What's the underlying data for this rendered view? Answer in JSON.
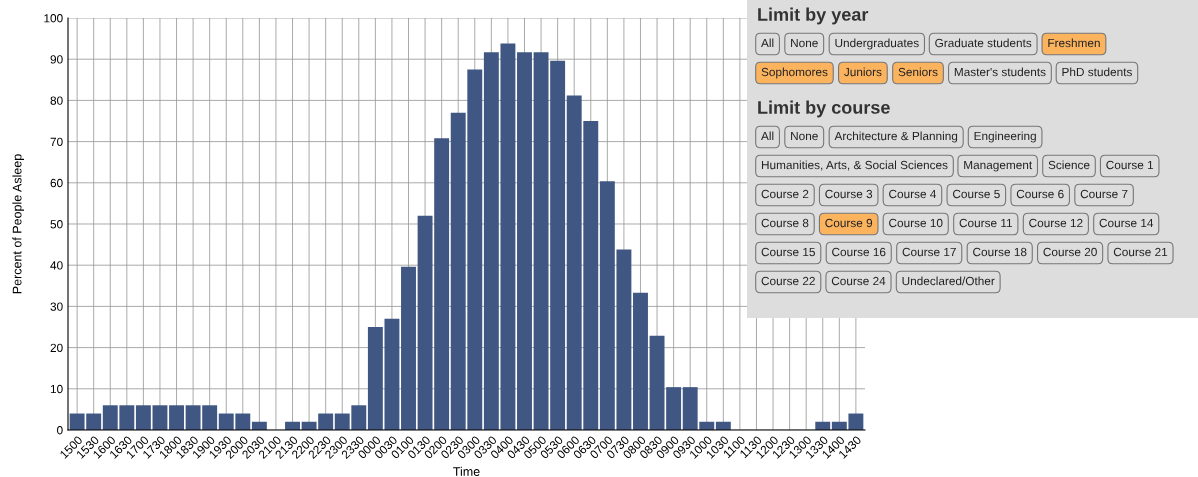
{
  "chart_data": [
    {
      "type": "bar",
      "xlabel": "Time",
      "ylabel": "Percent of People Asleep",
      "categories": [
        "1500",
        "1530",
        "1600",
        "1630",
        "1700",
        "1730",
        "1800",
        "1830",
        "1900",
        "1930",
        "2000",
        "2030",
        "2100",
        "2130",
        "2200",
        "2230",
        "2300",
        "2330",
        "0000",
        "0030",
        "0100",
        "0130",
        "0200",
        "0230",
        "0300",
        "0330",
        "0400",
        "0430",
        "0500",
        "0530",
        "0600",
        "0630",
        "0700",
        "0730",
        "0800",
        "0830",
        "0900",
        "0930",
        "1000",
        "1030",
        "1100",
        "1130",
        "1200",
        "1230",
        "1300",
        "1330",
        "1400",
        "1430"
      ],
      "values": [
        4,
        4,
        6,
        6,
        6,
        6,
        6,
        6,
        6,
        4,
        4,
        2,
        0,
        2,
        2,
        4,
        4,
        6,
        25,
        27,
        39.6,
        52,
        70.8,
        77,
        87.5,
        91.7,
        93.8,
        91.7,
        91.7,
        89.6,
        81.2,
        75,
        60.4,
        43.8,
        33.3,
        22.9,
        10.4,
        10.4,
        2,
        2,
        0,
        0,
        0,
        0,
        0,
        2,
        2,
        4
      ],
      "color": "#3f5782",
      "ylim": [
        0,
        100
      ],
      "yticks": [
        0,
        10,
        20,
        30,
        40,
        50,
        60,
        70,
        80,
        90,
        100
      ],
      "grid": true
    },
    {
      "type": "other",
      "title": "Limit by year",
      "annotations": [
        "All",
        "None",
        "Undergraduates",
        "Graduate students",
        "Freshmen",
        "Sophomores",
        "Juniors",
        "Seniors",
        "Master's students",
        "PhD students"
      ],
      "colors": [
        "#dddddd",
        "#dddddd",
        "#dddddd",
        "#dddddd",
        "#fbb35e",
        "#fbb35e",
        "#fbb35e",
        "#fbb35e",
        "#dddddd",
        "#dddddd"
      ]
    },
    {
      "type": "other",
      "title": "Limit by course",
      "annotations": [
        "All",
        "None",
        "Architecture & Planning",
        "Engineering",
        "Humanities, Arts, & Social Sciences",
        "Management",
        "Science",
        "Course 1",
        "Course 2",
        "Course 3",
        "Course 4",
        "Course 5",
        "Course 6",
        "Course 7",
        "Course 8",
        "Course 9",
        "Course 10",
        "Course 11",
        "Course 12",
        "Course 14",
        "Course 15",
        "Course 16",
        "Course 17",
        "Course 18",
        "Course 20",
        "Course 21",
        "Course 22",
        "Course 24",
        "Undeclared/Other"
      ],
      "colors": [
        "#dddddd",
        "#dddddd",
        "#dddddd",
        "#dddddd",
        "#dddddd",
        "#dddddd",
        "#dddddd",
        "#dddddd",
        "#dddddd",
        "#dddddd",
        "#dddddd",
        "#dddddd",
        "#dddddd",
        "#dddddd",
        "#dddddd",
        "#fbb35e",
        "#dddddd",
        "#dddddd",
        "#dddddd",
        "#dddddd",
        "#dddddd",
        "#dddddd",
        "#dddddd",
        "#dddddd",
        "#dddddd",
        "#dddddd",
        "#dddddd",
        "#dddddd",
        "#dddddd"
      ]
    }
  ]
}
